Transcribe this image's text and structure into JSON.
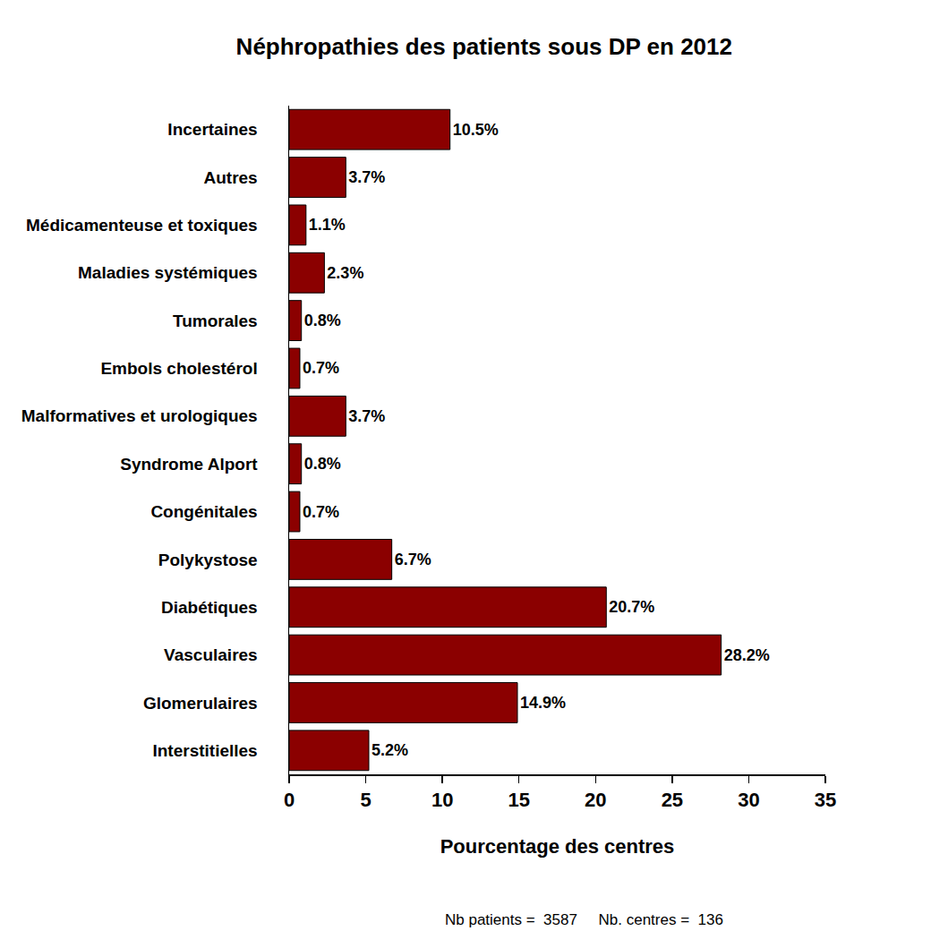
{
  "chart_data": {
    "type": "bar",
    "orientation": "horizontal",
    "title": "Néphropathies des patients sous DP en 2012",
    "x_label": "Pourcentage des centres",
    "annotations": [
      "Nb patients =  3587     Nb. centres =  136"
    ],
    "categories": [
      "Incertaines",
      "Autres",
      "Médicamenteuse et toxiques",
      "Maladies systémiques",
      "Tumorales",
      "Embols cholestérol",
      "Malformatives et urologiques",
      "Syndrome Alport",
      "Congénitales",
      "Polykystose",
      "Diabétiques",
      "Vasculaires",
      "Glomerulaires",
      "Interstitielles"
    ],
    "values": [
      10.5,
      3.7,
      1.1,
      2.3,
      0.8,
      0.7,
      3.7,
      0.8,
      0.7,
      6.7,
      20.7,
      28.2,
      14.9,
      5.2
    ],
    "value_labels": [
      "10.5%",
      "3.7%",
      "1.1%",
      "2.3%",
      "0.8%",
      "0.7%",
      "3.7%",
      "0.8%",
      "0.7%",
      "6.7%",
      "20.7%",
      "28.2%",
      "14.9%",
      "5.2%"
    ],
    "data_labels": true,
    "color": "#8b0000",
    "xlim": [
      0,
      35
    ],
    "xticks": [
      0,
      5,
      10,
      15,
      20,
      25,
      30,
      35
    ],
    "grid": false
  }
}
